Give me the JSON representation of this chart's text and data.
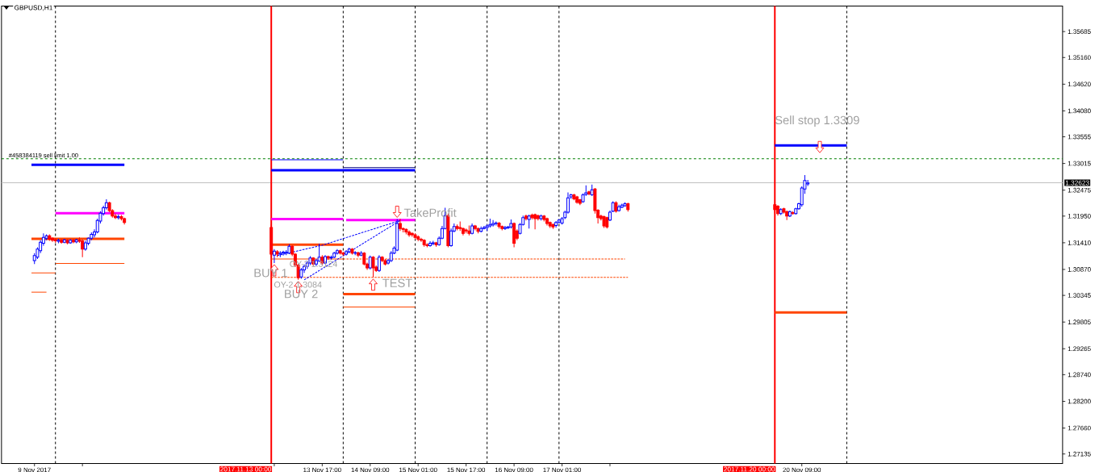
{
  "chart_data": {
    "type": "candlestick",
    "title": "GBPUSD,H1",
    "x": [
      "2017-11-09T17:00",
      "2017-11-09T18:00",
      "2017-11-09T19:00",
      "2017-11-09T20:00",
      "2017-11-09T21:00",
      "2017-11-09T22:00",
      "2017-11-09T23:00",
      "2017-11-10T00:00",
      "2017-11-10T01:00",
      "2017-11-10T02:00",
      "2017-11-10T03:00",
      "2017-11-10T04:00",
      "2017-11-10T05:00",
      "2017-11-10T06:00",
      "2017-11-10T07:00",
      "2017-11-10T08:00",
      "2017-11-10T09:00",
      "2017-11-10T10:00",
      "2017-11-10T11:00",
      "2017-11-10T12:00",
      "2017-11-10T13:00",
      "2017-11-10T14:00",
      "2017-11-10T15:00",
      "2017-11-10T16:00",
      "2017-11-10T17:00",
      "2017-11-10T18:00",
      "2017-11-10T19:00",
      "2017-11-10T20:00",
      "2017-11-10T21:00",
      "2017-11-10T22:00",
      "2017-11-10T23:00",
      "2017-11-13T00:00",
      "2017-11-13T01:00",
      "2017-11-13T02:00",
      "2017-11-13T03:00",
      "2017-11-13T04:00",
      "2017-11-13T05:00",
      "2017-11-13T06:00",
      "2017-11-13T07:00",
      "2017-11-13T08:00",
      "2017-11-13T09:00",
      "2017-11-13T10:00",
      "2017-11-13T11:00",
      "2017-11-13T12:00",
      "2017-11-13T13:00",
      "2017-11-13T14:00",
      "2017-11-13T15:00",
      "2017-11-13T16:00",
      "2017-11-13T17:00",
      "2017-11-13T18:00",
      "2017-11-13T19:00",
      "2017-11-13T20:00",
      "2017-11-13T21:00",
      "2017-11-13T22:00",
      "2017-11-13T23:00",
      "2017-11-14T00:00",
      "2017-11-14T01:00",
      "2017-11-14T02:00",
      "2017-11-14T03:00",
      "2017-11-14T04:00",
      "2017-11-14T05:00",
      "2017-11-14T06:00",
      "2017-11-14T07:00",
      "2017-11-14T08:00",
      "2017-11-14T09:00",
      "2017-11-14T10:00",
      "2017-11-14T11:00",
      "2017-11-14T12:00",
      "2017-11-14T13:00",
      "2017-11-14T14:00",
      "2017-11-14T15:00",
      "2017-11-14T16:00",
      "2017-11-14T17:00",
      "2017-11-14T18:00",
      "2017-11-14T19:00",
      "2017-11-14T20:00",
      "2017-11-14T21:00",
      "2017-11-14T22:00",
      "2017-11-14T23:00",
      "2017-11-15T00:00",
      "2017-11-15T01:00",
      "2017-11-15T02:00",
      "2017-11-15T03:00",
      "2017-11-15T04:00",
      "2017-11-15T05:00",
      "2017-11-15T06:00",
      "2017-11-15T07:00",
      "2017-11-15T08:00",
      "2017-11-15T09:00",
      "2017-11-15T10:00",
      "2017-11-15T11:00",
      "2017-11-15T12:00",
      "2017-11-15T13:00",
      "2017-11-15T14:00",
      "2017-11-15T15:00",
      "2017-11-15T16:00",
      "2017-11-15T17:00",
      "2017-11-15T18:00",
      "2017-11-15T19:00",
      "2017-11-15T20:00",
      "2017-11-15T21:00",
      "2017-11-15T22:00",
      "2017-11-15T23:00",
      "2017-11-16T00:00",
      "2017-11-16T01:00",
      "2017-11-16T02:00",
      "2017-11-16T03:00",
      "2017-11-16T04:00",
      "2017-11-16T05:00",
      "2017-11-16T06:00",
      "2017-11-16T07:00",
      "2017-11-16T08:00",
      "2017-11-16T09:00",
      "2017-11-16T10:00",
      "2017-11-16T11:00",
      "2017-11-16T12:00",
      "2017-11-16T13:00",
      "2017-11-16T14:00",
      "2017-11-16T15:00",
      "2017-11-16T16:00",
      "2017-11-16T17:00",
      "2017-11-16T18:00",
      "2017-11-16T19:00",
      "2017-11-16T20:00",
      "2017-11-16T21:00",
      "2017-11-16T22:00",
      "2017-11-16T23:00",
      "2017-11-17T00:00",
      "2017-11-17T01:00",
      "2017-11-17T02:00",
      "2017-11-17T03:00",
      "2017-11-17T04:00",
      "2017-11-17T05:00",
      "2017-11-17T06:00",
      "2017-11-17T07:00",
      "2017-11-17T08:00",
      "2017-11-17T09:00",
      "2017-11-17T10:00",
      "2017-11-17T11:00",
      "2017-11-17T12:00",
      "2017-11-17T13:00",
      "2017-11-17T14:00",
      "2017-11-17T15:00",
      "2017-11-17T16:00",
      "2017-11-17T17:00",
      "2017-11-17T18:00",
      "2017-11-17T19:00",
      "2017-11-17T20:00",
      "2017-11-17T21:00",
      "2017-11-17T22:00",
      "2017-11-17T23:00",
      "2017-11-20T00:00",
      "2017-11-20T01:00",
      "2017-11-20T02:00",
      "2017-11-20T03:00",
      "2017-11-20T04:00",
      "2017-11-20T05:00",
      "2017-11-20T06:00",
      "2017-11-20T07:00",
      "2017-11-20T08:00",
      "2017-11-20T09:00",
      "2017-11-20T10:00",
      "2017-11-20T11:00"
    ],
    "ohlc": [
      [
        1.3105,
        1.312,
        1.3098,
        1.3115
      ],
      [
        1.3112,
        1.3132,
        1.3108,
        1.3128
      ],
      [
        1.3125,
        1.3146,
        1.312,
        1.3142
      ],
      [
        1.314,
        1.316,
        1.3135,
        1.3152
      ],
      [
        1.315,
        1.3158,
        1.3146,
        1.3155
      ],
      [
        1.3155,
        1.3158,
        1.3145,
        1.3148
      ],
      [
        1.315,
        1.3152,
        1.3143,
        1.3146
      ],
      [
        1.3147,
        1.315,
        1.3141,
        1.3145
      ],
      [
        1.3144,
        1.3149,
        1.314,
        1.3146
      ],
      [
        1.3146,
        1.3148,
        1.3139,
        1.3142
      ],
      [
        1.3142,
        1.3149,
        1.314,
        1.3147
      ],
      [
        1.3146,
        1.3148,
        1.3138,
        1.3141
      ],
      [
        1.3141,
        1.3148,
        1.3139,
        1.3146
      ],
      [
        1.3146,
        1.3149,
        1.314,
        1.3143
      ],
      [
        1.3143,
        1.3149,
        1.314,
        1.3147
      ],
      [
        1.3146,
        1.3152,
        1.3141,
        1.3144
      ],
      [
        1.3145,
        1.3148,
        1.3112,
        1.3128
      ],
      [
        1.3128,
        1.3145,
        1.3125,
        1.3141
      ],
      [
        1.314,
        1.3152,
        1.3136,
        1.315
      ],
      [
        1.315,
        1.3162,
        1.3146,
        1.3158
      ],
      [
        1.3157,
        1.3168,
        1.3152,
        1.3163
      ],
      [
        1.3163,
        1.319,
        1.316,
        1.3186
      ],
      [
        1.3185,
        1.3205,
        1.318,
        1.3201
      ],
      [
        1.32,
        1.3216,
        1.3196,
        1.3212
      ],
      [
        1.3212,
        1.3229,
        1.3208,
        1.3222
      ],
      [
        1.3222,
        1.3224,
        1.3203,
        1.3206
      ],
      [
        1.3206,
        1.3209,
        1.3192,
        1.3195
      ],
      [
        1.3195,
        1.32,
        1.3189,
        1.3192
      ],
      [
        1.3192,
        1.3198,
        1.3188,
        1.3194
      ],
      [
        1.3194,
        1.3197,
        1.3186,
        1.319
      ],
      [
        1.319,
        1.3192,
        1.3178,
        1.3182
      ],
      [
        1.3172,
        1.3178,
        1.3112,
        1.3118
      ],
      [
        1.3116,
        1.3128,
        1.31,
        1.3124
      ],
      [
        1.3123,
        1.3126,
        1.3112,
        1.3118
      ],
      [
        1.3118,
        1.3124,
        1.3112,
        1.312
      ],
      [
        1.312,
        1.3125,
        1.3115,
        1.3122
      ],
      [
        1.3121,
        1.3126,
        1.3116,
        1.3122
      ],
      [
        1.312,
        1.3138,
        1.3118,
        1.3134
      ],
      [
        1.3134,
        1.3136,
        1.3114,
        1.3118
      ],
      [
        1.3118,
        1.312,
        1.3092,
        1.3096
      ],
      [
        1.3096,
        1.3098,
        1.3066,
        1.307
      ],
      [
        1.3072,
        1.309,
        1.3068,
        1.3086
      ],
      [
        1.3086,
        1.3097,
        1.308,
        1.3093
      ],
      [
        1.3093,
        1.3104,
        1.3088,
        1.31
      ],
      [
        1.31,
        1.3114,
        1.3096,
        1.311
      ],
      [
        1.311,
        1.3112,
        1.3094,
        1.3098
      ],
      [
        1.3098,
        1.3108,
        1.3094,
        1.3105
      ],
      [
        1.3104,
        1.3139,
        1.3102,
        1.3112
      ],
      [
        1.3112,
        1.3116,
        1.3096,
        1.31
      ],
      [
        1.31,
        1.3116,
        1.3098,
        1.3113
      ],
      [
        1.3113,
        1.3115,
        1.3106,
        1.311
      ],
      [
        1.311,
        1.3115,
        1.3107,
        1.3112
      ],
      [
        1.3112,
        1.3123,
        1.311,
        1.312
      ],
      [
        1.312,
        1.3128,
        1.3117,
        1.3125
      ],
      [
        1.3125,
        1.3127,
        1.3117,
        1.312
      ],
      [
        1.312,
        1.3123,
        1.3114,
        1.3118
      ],
      [
        1.3118,
        1.3126,
        1.3115,
        1.3123
      ],
      [
        1.3123,
        1.3131,
        1.312,
        1.3128
      ],
      [
        1.3128,
        1.313,
        1.3117,
        1.312
      ],
      [
        1.312,
        1.3124,
        1.3116,
        1.3121
      ],
      [
        1.3121,
        1.3123,
        1.3112,
        1.3116
      ],
      [
        1.3116,
        1.3124,
        1.3114,
        1.312
      ],
      [
        1.312,
        1.3122,
        1.3095,
        1.3098
      ],
      [
        1.3098,
        1.3101,
        1.3086,
        1.309
      ],
      [
        1.309,
        1.3115,
        1.3087,
        1.3112
      ],
      [
        1.3112,
        1.3114,
        1.3071,
        1.309
      ],
      [
        1.3092,
        1.3095,
        1.3082,
        1.3085
      ],
      [
        1.3085,
        1.3116,
        1.3082,
        1.3112
      ],
      [
        1.3112,
        1.3114,
        1.3102,
        1.3105
      ],
      [
        1.3105,
        1.3108,
        1.3095,
        1.3098
      ],
      [
        1.31,
        1.3108,
        1.3097,
        1.3105
      ],
      [
        1.3105,
        1.3124,
        1.3102,
        1.312
      ],
      [
        1.312,
        1.3134,
        1.3118,
        1.313
      ],
      [
        1.3126,
        1.3189,
        1.3124,
        1.318
      ],
      [
        1.318,
        1.319,
        1.3165,
        1.317
      ],
      [
        1.317,
        1.3172,
        1.3162,
        1.3168
      ],
      [
        1.3168,
        1.317,
        1.3158,
        1.3163
      ],
      [
        1.3163,
        1.3166,
        1.3153,
        1.3157
      ],
      [
        1.316,
        1.3162,
        1.3153,
        1.3157
      ],
      [
        1.3157,
        1.316,
        1.3148,
        1.3152
      ],
      [
        1.3153,
        1.3156,
        1.3144,
        1.3148
      ],
      [
        1.3148,
        1.3151,
        1.3143,
        1.3146
      ],
      [
        1.3146,
        1.3148,
        1.3133,
        1.3137
      ],
      [
        1.3137,
        1.314,
        1.3132,
        1.3135
      ],
      [
        1.3135,
        1.3144,
        1.3133,
        1.314
      ],
      [
        1.3139,
        1.3145,
        1.3136,
        1.3141
      ],
      [
        1.3141,
        1.3143,
        1.3133,
        1.3137
      ],
      [
        1.3137,
        1.3154,
        1.3135,
        1.315
      ],
      [
        1.315,
        1.3175,
        1.3148,
        1.317
      ],
      [
        1.317,
        1.3212,
        1.3168,
        1.3196
      ],
      [
        1.3196,
        1.32,
        1.3132,
        1.3135
      ],
      [
        1.3135,
        1.317,
        1.3133,
        1.3165
      ],
      [
        1.3165,
        1.318,
        1.3162,
        1.3174
      ],
      [
        1.3174,
        1.3178,
        1.3166,
        1.317
      ],
      [
        1.3172,
        1.3184,
        1.3165,
        1.317
      ],
      [
        1.317,
        1.3172,
        1.3156,
        1.316
      ],
      [
        1.3167,
        1.317,
        1.316,
        1.3165
      ],
      [
        1.3165,
        1.3176,
        1.3156,
        1.316
      ],
      [
        1.316,
        1.318,
        1.3158,
        1.3175
      ],
      [
        1.3175,
        1.3177,
        1.3166,
        1.317
      ],
      [
        1.317,
        1.3172,
        1.316,
        1.3164
      ],
      [
        1.3164,
        1.3174,
        1.3162,
        1.317
      ],
      [
        1.317,
        1.3175,
        1.3168,
        1.3172
      ],
      [
        1.3172,
        1.3178,
        1.3165,
        1.3175
      ],
      [
        1.3175,
        1.319,
        1.3172,
        1.3178
      ],
      [
        1.3177,
        1.3187,
        1.3174,
        1.318
      ],
      [
        1.318,
        1.3184,
        1.3176,
        1.3181
      ],
      [
        1.3181,
        1.3183,
        1.317,
        1.3174
      ],
      [
        1.3174,
        1.3176,
        1.3166,
        1.317
      ],
      [
        1.317,
        1.3175,
        1.3167,
        1.3172
      ],
      [
        1.3171,
        1.3175,
        1.3169,
        1.3173
      ],
      [
        1.3173,
        1.3188,
        1.317,
        1.318
      ],
      [
        1.318,
        1.3182,
        1.3132,
        1.314
      ],
      [
        1.3165,
        1.3168,
        1.3146,
        1.315
      ],
      [
        1.316,
        1.3181,
        1.3158,
        1.3178
      ],
      [
        1.3178,
        1.3196,
        1.3176,
        1.3192
      ],
      [
        1.3195,
        1.3198,
        1.3186,
        1.319
      ],
      [
        1.3188,
        1.3198,
        1.317,
        1.3195
      ],
      [
        1.3197,
        1.32,
        1.3188,
        1.3192
      ],
      [
        1.3198,
        1.32,
        1.3168,
        1.319
      ],
      [
        1.3196,
        1.3198,
        1.3186,
        1.319
      ],
      [
        1.319,
        1.3198,
        1.3186,
        1.3195
      ],
      [
        1.3195,
        1.3197,
        1.3184,
        1.3188
      ],
      [
        1.319,
        1.3192,
        1.3176,
        1.318
      ],
      [
        1.3182,
        1.3184,
        1.3171,
        1.3175
      ],
      [
        1.3178,
        1.318,
        1.3169,
        1.3173
      ],
      [
        1.3176,
        1.3185,
        1.3172,
        1.3182
      ],
      [
        1.3183,
        1.3189,
        1.318,
        1.3187
      ],
      [
        1.3181,
        1.3193,
        1.3178,
        1.319
      ],
      [
        1.3192,
        1.3206,
        1.3189,
        1.3203
      ],
      [
        1.3203,
        1.3243,
        1.32,
        1.3232
      ],
      [
        1.3234,
        1.324,
        1.323,
        1.3238
      ],
      [
        1.3238,
        1.324,
        1.3227,
        1.323
      ],
      [
        1.3234,
        1.3236,
        1.322,
        1.3223
      ],
      [
        1.3228,
        1.323,
        1.3217,
        1.3221
      ],
      [
        1.3224,
        1.3241,
        1.3222,
        1.3238
      ],
      [
        1.3239,
        1.3257,
        1.3236,
        1.3242
      ],
      [
        1.3244,
        1.3246,
        1.3237,
        1.324
      ],
      [
        1.3238,
        1.3259,
        1.3236,
        1.3248
      ],
      [
        1.325,
        1.3252,
        1.32,
        1.3206
      ],
      [
        1.3207,
        1.3209,
        1.318,
        1.3192
      ],
      [
        1.3195,
        1.3198,
        1.3186,
        1.319
      ],
      [
        1.3194,
        1.3196,
        1.3171,
        1.3175
      ],
      [
        1.3192,
        1.3194,
        1.317,
        1.3173
      ],
      [
        1.3187,
        1.3206,
        1.3185,
        1.3203
      ],
      [
        1.3205,
        1.3225,
        1.3203,
        1.3222
      ],
      [
        1.3222,
        1.3225,
        1.3202,
        1.3205
      ],
      [
        1.3206,
        1.3218,
        1.3204,
        1.3214
      ],
      [
        1.3213,
        1.322,
        1.3211,
        1.3217
      ],
      [
        1.3216,
        1.3223,
        1.3214,
        1.322
      ],
      [
        1.322,
        1.3222,
        1.3204,
        1.3208
      ],
      [
        1.3218,
        1.322,
        1.32,
        1.3208
      ],
      [
        1.3215,
        1.3217,
        1.3196,
        1.32
      ],
      [
        1.32,
        1.3211,
        1.3197,
        1.3208
      ],
      [
        1.321,
        1.3212,
        1.32,
        1.3203
      ],
      [
        1.3204,
        1.3206,
        1.3187,
        1.3195
      ],
      [
        1.3195,
        1.3206,
        1.3193,
        1.3204
      ],
      [
        1.3202,
        1.3205,
        1.3198,
        1.32
      ],
      [
        1.32,
        1.3212,
        1.3198,
        1.321
      ],
      [
        1.321,
        1.3222,
        1.3208,
        1.322
      ],
      [
        1.3218,
        1.3255,
        1.3214,
        1.3252
      ],
      [
        1.325,
        1.3278,
        1.324,
        1.3267
      ],
      [
        1.326,
        1.3268,
        1.3256,
        1.3262
      ]
    ],
    "colors": [
      "#0000ff",
      "#0000ff",
      "#0000ff",
      "#0000ff",
      "#0000ff",
      "#ff0000",
      "#ff0000",
      "#ff0000",
      "#0000ff",
      "#ff0000",
      "#0000ff",
      "#ff0000",
      "#0000ff",
      "#ff0000",
      "#0000ff",
      "#ff0000",
      "#ff0000",
      "#0000ff",
      "#0000ff",
      "#0000ff",
      "#0000ff",
      "#0000ff",
      "#0000ff",
      "#0000ff",
      "#0000ff",
      "#ff0000",
      "#ff0000",
      "#ff0000",
      "#0000ff",
      "#ff0000",
      "#ff0000",
      "#ff0000",
      "#0000ff",
      "#ff0000",
      "#0000ff",
      "#0000ff",
      "#0000ff",
      "#0000ff",
      "#ff0000",
      "#ff0000",
      "#ff0000",
      "#0000ff",
      "#0000ff",
      "#0000ff",
      "#0000ff",
      "#ff0000",
      "#0000ff",
      "#0000ff",
      "#ff0000",
      "#0000ff",
      "#ff0000",
      "#0000ff",
      "#0000ff",
      "#0000ff",
      "#ff0000",
      "#ff0000",
      "#0000ff",
      "#0000ff",
      "#ff0000",
      "#0000ff",
      "#ff0000",
      "#0000ff",
      "#ff0000",
      "#ff0000",
      "#0000ff",
      "#ff0000",
      "#ff0000",
      "#0000ff",
      "#ff0000",
      "#ff0000",
      "#0000ff",
      "#0000ff",
      "#0000ff",
      "#0000ff",
      "#ff0000",
      "#ff0000",
      "#ff0000",
      "#ff0000",
      "#ff0000",
      "#ff0000",
      "#ff0000",
      "#ff0000",
      "#ff0000",
      "#ff0000",
      "#0000ff",
      "#0000ff",
      "#ff0000",
      "#0000ff",
      "#0000ff",
      "#0000ff",
      "#ff0000",
      "#0000ff",
      "#0000ff",
      "#ff0000",
      "#ff0000",
      "#ff0000",
      "#ff0000",
      "#ff0000",
      "#0000ff",
      "#ff0000",
      "#ff0000",
      "#0000ff",
      "#0000ff",
      "#0000ff",
      "#0000ff",
      "#0000ff",
      "#0000ff",
      "#ff0000",
      "#ff0000",
      "#0000ff",
      "#0000ff",
      "#0000ff",
      "#ff0000",
      "#ff0000",
      "#0000ff",
      "#0000ff",
      "#ff0000",
      "#0000ff",
      "#ff0000",
      "#ff0000",
      "#ff0000",
      "#0000ff",
      "#ff0000",
      "#ff0000",
      "#ff0000",
      "#ff0000",
      "#0000ff",
      "#0000ff",
      "#0000ff",
      "#0000ff",
      "#0000ff",
      "#0000ff",
      "#ff0000",
      "#ff0000",
      "#ff0000",
      "#0000ff",
      "#0000ff",
      "#ff0000",
      "#0000ff",
      "#ff0000",
      "#ff0000",
      "#ff0000",
      "#ff0000",
      "#ff0000",
      "#0000ff",
      "#0000ff",
      "#ff0000",
      "#0000ff",
      "#0000ff",
      "#0000ff",
      "#ff0000",
      "#ff0000",
      "#ff0000",
      "#0000ff",
      "#ff0000",
      "#ff0000",
      "#0000ff",
      "#ff0000",
      "#0000ff",
      "#0000ff",
      "#0000ff",
      "#0000ff",
      "#0000ff"
    ],
    "series": [
      {
        "type": "line",
        "color": "#0000ff",
        "x": [
          "2017-11-09T16:00",
          "2017-11-10T23:00"
        ],
        "values": [
          1.3299,
          1.3299
        ]
      },
      {
        "type": "line",
        "color": "#0000ff",
        "x": [
          "2017-11-13T00:00",
          "2017-11-15T00:00"
        ],
        "values": [
          1.3288,
          1.3288
        ]
      },
      {
        "type": "line",
        "color": "#0000ff",
        "line_style": "solid",
        "x": [
          "2017-11-13T00:00",
          "2017-11-14T00:00"
        ],
        "values": [
          1.3309,
          1.3309
        ]
      },
      {
        "type": "line",
        "color": "#000080",
        "line_style": "solid",
        "x": [
          "2017-11-14T00:00",
          "2017-11-15T00:00"
        ],
        "values": [
          1.3293,
          1.3293
        ]
      },
      {
        "type": "line",
        "color": "#0000ff",
        "x": [
          "2017-11-20T00:00",
          "2017-11-21T00:00"
        ],
        "values": [
          1.3338,
          1.3338
        ]
      },
      {
        "type": "line",
        "color": "#ff00ff",
        "x": [
          "2017-11-10T00:00",
          "2017-11-10T23:00"
        ],
        "values": [
          1.3201,
          1.3201
        ]
      },
      {
        "type": "line",
        "color": "#ff00ff",
        "x": [
          "2017-11-13T00:00",
          "2017-11-14T00:00"
        ],
        "values": [
          1.3189,
          1.3189
        ]
      },
      {
        "type": "line",
        "color": "#ff00ff",
        "x": [
          "2017-11-14T01:00",
          "2017-11-15T00:00"
        ],
        "values": [
          1.3187,
          1.3187
        ]
      },
      {
        "type": "line",
        "color": "#ff4500",
        "x": [
          "2017-11-09T16:00",
          "2017-11-10T23:00"
        ],
        "values": [
          1.3149,
          1.3149
        ]
      },
      {
        "type": "line",
        "color": "#ff4500",
        "x": [
          "2017-11-13T00:00",
          "2017-11-14T00:00"
        ],
        "values": [
          1.3137,
          1.3137
        ]
      },
      {
        "type": "line",
        "color": "#ff4500",
        "x": [
          "2017-11-14T00:00",
          "2017-11-15T00:00"
        ],
        "values": [
          1.3037,
          1.3037
        ]
      },
      {
        "type": "line",
        "color": "#ff4500",
        "x": [
          "2017-11-20T00:00",
          "2017-11-21T00:00"
        ],
        "values": [
          1.3,
          1.3
        ]
      },
      {
        "type": "line",
        "color": "#ff4500",
        "line_style": "solid",
        "x": [
          "2017-11-10T00:00",
          "2017-11-10T23:00"
        ],
        "values": [
          1.3099,
          1.3099
        ]
      },
      {
        "type": "line",
        "color": "#ff4500",
        "line_style": "solid",
        "x": [
          "2017-11-09T16:00",
          "2017-11-10T00:00"
        ],
        "values": [
          1.308,
          1.308
        ]
      },
      {
        "type": "line",
        "color": "#ff4500",
        "line_style": "solid",
        "x": [
          "2017-11-09T16:00",
          "2017-11-09T21:00"
        ],
        "values": [
          1.3041,
          1.3041
        ]
      },
      {
        "type": "line",
        "color": "#ff4500",
        "line_style": "solid",
        "x": [
          "2017-11-13T00:00",
          "2017-11-14T00:00"
        ],
        "values": [
          1.3108,
          1.3108
        ]
      },
      {
        "type": "line",
        "color": "#ff4500",
        "line_style": "solid",
        "x": [
          "2017-11-14T00:00",
          "2017-11-15T00:00"
        ],
        "values": [
          1.3011,
          1.3011
        ]
      },
      {
        "type": "line",
        "color": "#ff4500",
        "line_style": "dashed",
        "x": [
          "2017-11-14T00:00",
          "2017-11-17T22:00"
        ],
        "values": [
          1.3108,
          1.3108
        ]
      },
      {
        "type": "line",
        "color": "#ff4500",
        "line_style": "dashed",
        "x": [
          "2017-11-13T00:00",
          "2017-11-17T23:00"
        ],
        "values": [
          1.3071,
          1.3071
        ]
      },
      {
        "type": "line",
        "color": "#0000ff",
        "line_style": "dashed",
        "x": [
          "2017-11-13T02:00",
          "2017-11-13T17:00",
          "2017-11-14T19:00"
        ],
        "values": [
          1.3115,
          1.3136,
          1.3186
        ]
      },
      {
        "type": "line",
        "color": "#0000ff",
        "line_style": "dashed",
        "x": [
          "2017-11-13T11:00",
          "2017-11-14T19:00"
        ],
        "values": [
          1.3066,
          1.3186
        ]
      }
    ],
    "xlim": [
      "2017-11-09T06:00",
      "2017-11-24T00:00"
    ],
    "xticks": [
      {
        "value": "2017-11-09T17:00",
        "label": "9 Nov 2017"
      },
      {
        "value": "2017-11-10T09:00",
        "label": null
      },
      {
        "value": "2017-11-13T01:00",
        "label": null
      },
      {
        "value": "2017-11-13T17:00",
        "label": "13 Nov 17:00"
      },
      {
        "value": "2017-11-14T09:00",
        "label": "14 Nov 09:00"
      },
      {
        "value": "2017-11-15T01:00",
        "label": "15 Nov 01:00"
      },
      {
        "value": "2017-11-15T17:00",
        "label": "15 Nov 17:00"
      },
      {
        "value": "2017-11-16T09:00",
        "label": "16 Nov 09:00"
      },
      {
        "value": "2017-11-17T01:00",
        "label": "17 Nov 01:00"
      },
      {
        "value": "2017-11-17T17:00",
        "label": null
      },
      {
        "value": "2017-11-20T09:00",
        "label": "20 Nov 09:00"
      }
    ],
    "ylim": [
      1.2694,
      1.362
    ],
    "yticks": [
      1.35685,
      {
        "value": 1.3516,
        "label": "1.35160"
      },
      {
        "value": 1.3462,
        "label": "1.34620"
      },
      {
        "value": 1.3408,
        "label": "1.34080"
      },
      1.33555,
      1.33015,
      1.32475,
      {
        "value": 1.3195,
        "label": "1.31950"
      },
      {
        "value": 1.3141,
        "label": "1.31410"
      },
      {
        "value": 1.3087,
        "label": "1.30870"
      },
      1.30345,
      1.29805,
      1.29265,
      {
        "value": 1.2874,
        "label": "1.28740"
      },
      {
        "value": 1.282,
        "label": "1.28200"
      },
      {
        "value": 1.2766,
        "label": "1.27660"
      },
      1.27135
    ],
    "ref_lines": [
      {
        "axis": "y",
        "value": 1.3311,
        "label": "#458384119 sell limit 1.00",
        "color": "#008000",
        "line_style": "dashed"
      },
      {
        "axis": "y",
        "value": 1.32623,
        "label": "1.32623",
        "color": "#c0c0c0",
        "line_style": "solid"
      },
      {
        "axis": "x",
        "value": "2017-11-13T00:00",
        "label": "2017.11.13 00:00",
        "color": "#ff0000",
        "line_style": "solid"
      },
      {
        "axis": "x",
        "value": "2017-11-20T00:00",
        "label": "2017.11.20 00:00",
        "color": "#ff0000",
        "line_style": "solid"
      },
      {
        "axis": "x",
        "value": "2017-11-10T00:00",
        "color": "#000000",
        "line_style": "dashed"
      },
      {
        "axis": "x",
        "value": "2017-11-14T00:00",
        "color": "#000000",
        "line_style": "dashed"
      },
      {
        "axis": "x",
        "value": "2017-11-15T00:00",
        "color": "#000000",
        "line_style": "dashed"
      },
      {
        "axis": "x",
        "value": "2017-11-16T00:00",
        "color": "#000000",
        "line_style": "dashed"
      },
      {
        "axis": "x",
        "value": "2017-11-17T00:00",
        "color": "#000000",
        "line_style": "dashed"
      },
      {
        "axis": "x",
        "value": "2017-11-21T00:00",
        "color": "#000000",
        "line_style": "dashed"
      }
    ],
    "annotations": [
      {
        "text": "BUY 1",
        "x": "2017-11-13T01:00",
        "y": 1.31
      },
      {
        "text": "BUY 2",
        "x": "2017-11-13T09:00",
        "y": 1.3066
      },
      {
        "text": "TEST",
        "x": "2017-11-14T10:00",
        "y": 1.3071
      },
      {
        "text": "TakeProfit",
        "x": "2017-11-14T18:00",
        "y": 1.3189
      },
      {
        "text": "Sell stop 1.3309",
        "x": "2017-11-20T15:00",
        "y": 1.3338
      },
      {
        "text": "OY-2 1.3124",
        "x": "2017-11-13T06:00",
        "y": 1.3108
      },
      {
        "text": "OY-2 1.3084",
        "x": "2017-11-13T00:00",
        "y": 1.3071
      }
    ]
  }
}
